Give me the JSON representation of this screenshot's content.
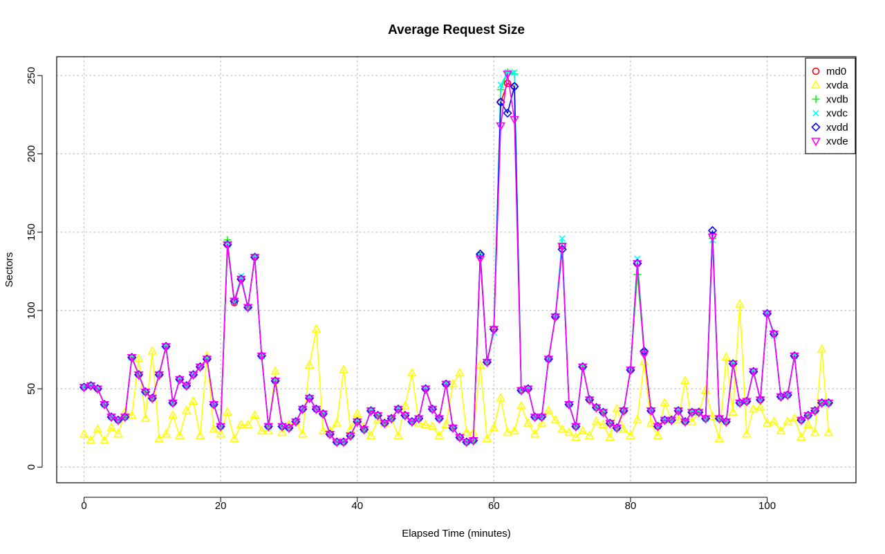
{
  "chart_data": {
    "type": "line",
    "title": "Average Request Size",
    "xlabel": "Elapsed Time (minutes)",
    "ylabel": "Sectors",
    "xlim": [
      -4,
      113
    ],
    "ylim": [
      -10,
      262
    ],
    "xticks": [
      0,
      20,
      40,
      60,
      80,
      100
    ],
    "yticks": [
      0,
      50,
      100,
      150,
      200,
      250
    ],
    "grid": true,
    "legend_position": "top-right",
    "x": [
      0,
      1,
      2,
      3,
      4,
      5,
      6,
      7,
      8,
      9,
      10,
      11,
      12,
      13,
      14,
      15,
      16,
      17,
      18,
      19,
      20,
      21,
      22,
      23,
      24,
      25,
      26,
      27,
      28,
      29,
      30,
      31,
      32,
      33,
      34,
      35,
      36,
      37,
      38,
      39,
      40,
      41,
      42,
      43,
      44,
      45,
      46,
      47,
      48,
      49,
      50,
      51,
      52,
      53,
      54,
      55,
      56,
      57,
      58,
      59,
      60,
      61,
      62,
      63,
      64,
      65,
      66,
      67,
      68,
      69,
      70,
      71,
      72,
      73,
      74,
      75,
      76,
      77,
      78,
      79,
      80,
      81,
      82,
      83,
      84,
      85,
      86,
      87,
      88,
      89,
      90,
      91,
      92,
      93,
      94,
      95,
      96,
      97,
      98,
      99,
      100,
      101,
      102,
      103,
      104,
      105,
      106,
      107,
      108,
      109
    ],
    "series": [
      {
        "name": "md0",
        "color": "#ff0000",
        "marker": "circle",
        "values": [
          51,
          52,
          50,
          40,
          32,
          30,
          32,
          70,
          59,
          48,
          44,
          59,
          77,
          41,
          56,
          52,
          59,
          64,
          69,
          40,
          26,
          142,
          105,
          120,
          102,
          134,
          71,
          26,
          55,
          26,
          25,
          29,
          37,
          44,
          37,
          34,
          21,
          16,
          16,
          20,
          29,
          24,
          36,
          33,
          28,
          31,
          37,
          33,
          29,
          31,
          50,
          37,
          31,
          53,
          25,
          19,
          16,
          17,
          135,
          67,
          88,
          233,
          245,
          243,
          49,
          50,
          32,
          32,
          69,
          96,
          141,
          40,
          26,
          64,
          43,
          38,
          35,
          28,
          25,
          36,
          62,
          130,
          73,
          36,
          26,
          30,
          30,
          36,
          29,
          35,
          35,
          31,
          148,
          31,
          29,
          66,
          41,
          42,
          61,
          43,
          98,
          85,
          45,
          46,
          71,
          30,
          33,
          36,
          41,
          41
        ]
      },
      {
        "name": "xvda",
        "color": "#ffff00",
        "marker": "triangle",
        "values": [
          21,
          17,
          24,
          17,
          25,
          21,
          35,
          33,
          69,
          31,
          74,
          18,
          21,
          33,
          20,
          36,
          42,
          20,
          71,
          24,
          21,
          35,
          18,
          27,
          27,
          33,
          23,
          23,
          61,
          22,
          27,
          29,
          21,
          65,
          88,
          23,
          23,
          28,
          62,
          24,
          34,
          25,
          20,
          30,
          28,
          31,
          20,
          39,
          60,
          28,
          27,
          26,
          20,
          27,
          53,
          60,
          22,
          22,
          65,
          18,
          25,
          44,
          22,
          23,
          39,
          28,
          21,
          28,
          36,
          30,
          24,
          22,
          19,
          23,
          20,
          29,
          27,
          19,
          37,
          24,
          20,
          30,
          67,
          28,
          20,
          41,
          30,
          30,
          55,
          29,
          35,
          49,
          32,
          18,
          70,
          35,
          104,
          21,
          37,
          38,
          28,
          29,
          23,
          29,
          31,
          19,
          27,
          22,
          75,
          22
        ]
      },
      {
        "name": "xvdb",
        "color": "#00ff00",
        "marker": "plus",
        "values": [
          51,
          52,
          50,
          40,
          32,
          30,
          32,
          70,
          59,
          48,
          44,
          59,
          77,
          41,
          56,
          52,
          59,
          64,
          69,
          40,
          26,
          145,
          106,
          120,
          102,
          134,
          71,
          26,
          55,
          26,
          25,
          29,
          37,
          44,
          37,
          34,
          21,
          16,
          16,
          20,
          29,
          24,
          36,
          33,
          28,
          31,
          37,
          33,
          29,
          31,
          50,
          37,
          31,
          53,
          25,
          19,
          16,
          17,
          135,
          67,
          88,
          241,
          252,
          251,
          49,
          50,
          32,
          32,
          69,
          96,
          143,
          40,
          26,
          64,
          43,
          38,
          35,
          28,
          25,
          36,
          62,
          123,
          73,
          36,
          26,
          30,
          30,
          36,
          29,
          35,
          35,
          31,
          146,
          31,
          29,
          66,
          41,
          42,
          61,
          43,
          98,
          85,
          45,
          46,
          71,
          30,
          33,
          36,
          41,
          41
        ]
      },
      {
        "name": "xvdc",
        "color": "#00ffff",
        "marker": "cross",
        "values": [
          51,
          52,
          50,
          40,
          32,
          30,
          32,
          70,
          59,
          48,
          44,
          59,
          77,
          41,
          56,
          52,
          59,
          64,
          69,
          40,
          26,
          142,
          106,
          122,
          102,
          134,
          71,
          26,
          55,
          26,
          25,
          29,
          37,
          44,
          37,
          34,
          21,
          16,
          16,
          20,
          29,
          24,
          36,
          33,
          28,
          31,
          37,
          33,
          29,
          31,
          50,
          37,
          31,
          53,
          25,
          19,
          16,
          17,
          135,
          67,
          86,
          244,
          252,
          252,
          49,
          50,
          32,
          32,
          69,
          96,
          146,
          40,
          26,
          64,
          43,
          38,
          35,
          28,
          25,
          36,
          62,
          133,
          73,
          36,
          26,
          30,
          30,
          36,
          29,
          35,
          35,
          31,
          145,
          31,
          29,
          66,
          41,
          42,
          61,
          43,
          98,
          84,
          45,
          46,
          71,
          30,
          33,
          36,
          41,
          41
        ]
      },
      {
        "name": "xvdd",
        "color": "#0000ff",
        "marker": "diamond",
        "values": [
          51,
          52,
          50,
          40,
          32,
          30,
          32,
          70,
          59,
          48,
          44,
          59,
          77,
          41,
          56,
          52,
          59,
          64,
          69,
          40,
          26,
          142,
          106,
          120,
          102,
          134,
          71,
          26,
          55,
          26,
          25,
          29,
          37,
          44,
          37,
          34,
          21,
          16,
          16,
          20,
          29,
          24,
          36,
          33,
          28,
          31,
          37,
          33,
          29,
          31,
          50,
          37,
          31,
          53,
          25,
          19,
          16,
          17,
          136,
          67,
          88,
          233,
          226,
          243,
          49,
          50,
          32,
          32,
          69,
          96,
          139,
          40,
          26,
          64,
          43,
          38,
          35,
          28,
          25,
          36,
          62,
          130,
          74,
          36,
          26,
          30,
          30,
          36,
          29,
          35,
          35,
          31,
          151,
          31,
          29,
          66,
          41,
          42,
          61,
          43,
          98,
          85,
          45,
          46,
          71,
          30,
          33,
          36,
          41,
          41
        ]
      },
      {
        "name": "xvde",
        "color": "#ff00ff",
        "marker": "triangle-down",
        "values": [
          51,
          52,
          50,
          40,
          32,
          30,
          32,
          70,
          59,
          48,
          44,
          59,
          77,
          41,
          56,
          52,
          59,
          64,
          69,
          40,
          26,
          142,
          106,
          120,
          102,
          134,
          71,
          26,
          55,
          26,
          25,
          29,
          37,
          44,
          37,
          34,
          21,
          16,
          16,
          20,
          29,
          24,
          36,
          33,
          28,
          31,
          37,
          33,
          29,
          31,
          50,
          37,
          31,
          53,
          25,
          19,
          16,
          17,
          133,
          67,
          88,
          218,
          251,
          222,
          49,
          50,
          32,
          32,
          69,
          96,
          141,
          40,
          26,
          64,
          43,
          38,
          35,
          28,
          25,
          36,
          62,
          130,
          72,
          36,
          26,
          30,
          30,
          36,
          29,
          35,
          35,
          31,
          147,
          31,
          29,
          66,
          41,
          42,
          61,
          43,
          98,
          85,
          45,
          46,
          71,
          30,
          33,
          36,
          41,
          41
        ]
      }
    ]
  }
}
